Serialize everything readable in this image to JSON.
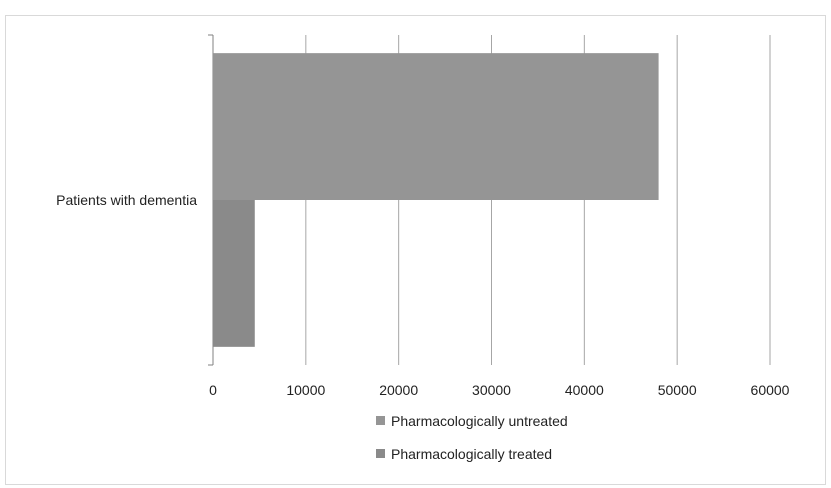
{
  "chart_data": {
    "type": "bar",
    "orientation": "horizontal",
    "categories": [
      "Patients with dementia"
    ],
    "series": [
      {
        "name": "Pharmacologically untreated",
        "values": [
          48000
        ],
        "color": "#959595"
      },
      {
        "name": "Pharmacologically treated",
        "values": [
          4500
        ],
        "color": "#8a8a8a"
      }
    ],
    "xlim": [
      0,
      60000
    ],
    "xticks": [
      0,
      10000,
      20000,
      30000,
      40000,
      50000,
      60000
    ],
    "xtick_labels": [
      "0",
      "10000",
      "20000",
      "30000",
      "40000",
      "50000",
      "60000"
    ],
    "grid": true,
    "legend_position": "bottom",
    "title": "",
    "xlabel": "",
    "ylabel": ""
  }
}
